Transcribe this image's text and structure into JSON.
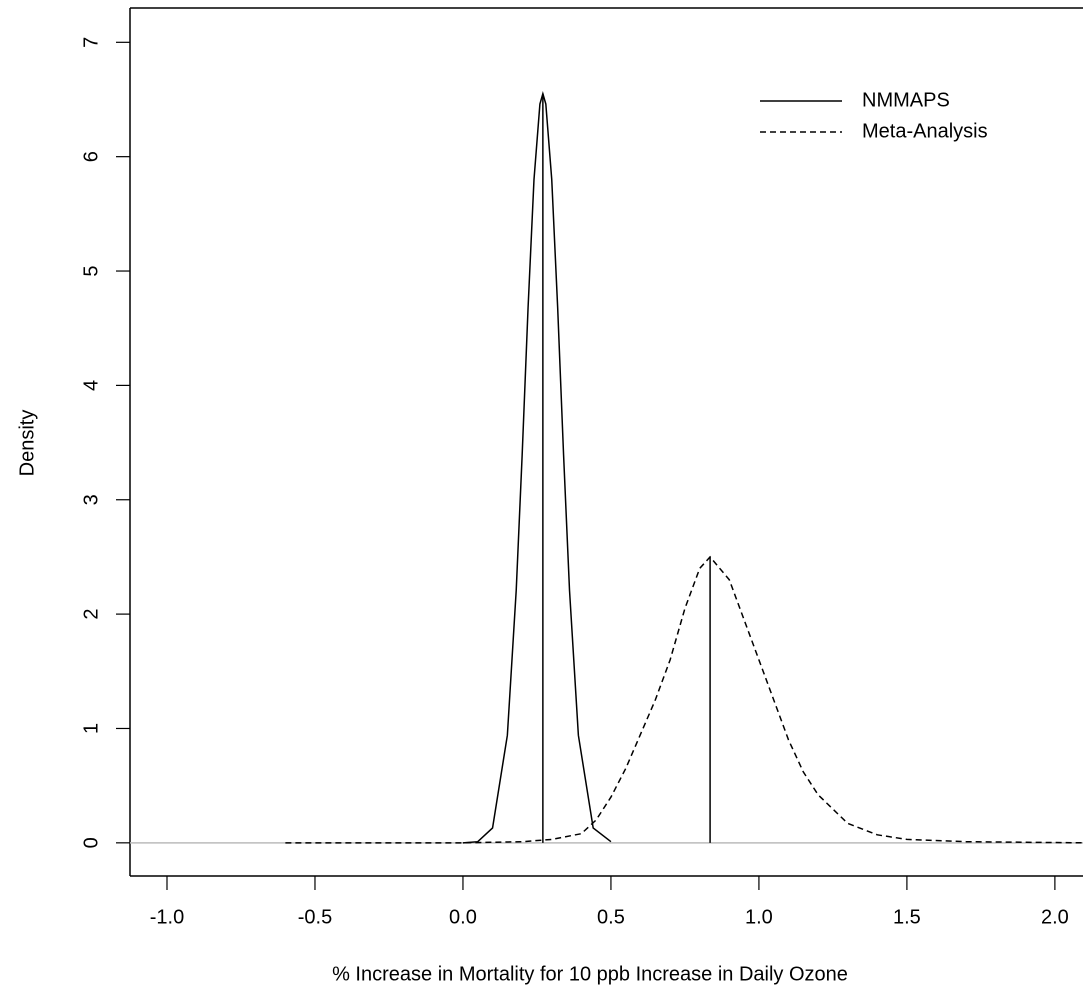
{
  "chart_data": {
    "type": "line",
    "x_label": "% Increase in Mortality for 10 ppb Increase in Daily Ozone",
    "y_label": "Density",
    "xlim": [
      -1.125,
      2.095
    ],
    "ylim": [
      -0.29,
      7.3
    ],
    "xticks": [
      {
        "value": -1,
        "label": "-1.0"
      },
      -0.5,
      {
        "value": 0,
        "label": "0.0"
      },
      0.5,
      {
        "value": 1,
        "label": "1.0"
      },
      {
        "value": 1.5,
        "label": "1.5"
      },
      {
        "value": 2,
        "label": "2.0"
      }
    ],
    "yticks": [
      0,
      1,
      2,
      3,
      4,
      5,
      6,
      7
    ],
    "baseline": {
      "value": 0,
      "color": "#bbbbbb"
    },
    "legend": "top-right",
    "series": [
      {
        "name": "NMMAPS",
        "color": "#000000",
        "dash": false,
        "x": [
          0.0,
          0.05,
          0.1,
          0.15,
          0.18,
          0.2,
          0.22,
          0.24,
          0.26,
          0.27,
          0.28,
          0.3,
          0.32,
          0.34,
          0.36,
          0.39,
          0.44,
          0.5
        ],
        "values": [
          0.0,
          0.01,
          0.13,
          0.94,
          2.21,
          3.39,
          4.68,
          5.8,
          6.46,
          6.55,
          6.46,
          5.8,
          4.68,
          3.39,
          2.21,
          0.94,
          0.13,
          0.01
        ],
        "marker": {
          "x": 0.27,
          "y": 6.55
        }
      },
      {
        "name": "Meta-Analysis",
        "color": "#000000",
        "dash": true,
        "x": [
          -0.6,
          0,
          0.2,
          0.3,
          0.4,
          0.45,
          0.5,
          0.55,
          0.6,
          0.65,
          0.7,
          0.75,
          0.8,
          0.835,
          0.9,
          0.95,
          1.0,
          1.05,
          1.1,
          1.15,
          1.2,
          1.3,
          1.4,
          1.5,
          1.7,
          2.1
        ],
        "values": [
          0,
          0,
          0.01,
          0.03,
          0.08,
          0.2,
          0.4,
          0.65,
          0.95,
          1.25,
          1.6,
          2.05,
          2.4,
          2.5,
          2.3,
          1.95,
          1.6,
          1.25,
          0.9,
          0.62,
          0.42,
          0.17,
          0.07,
          0.03,
          0.01,
          0
        ],
        "marker": {
          "x": 0.835,
          "y": 2.5
        }
      }
    ]
  }
}
